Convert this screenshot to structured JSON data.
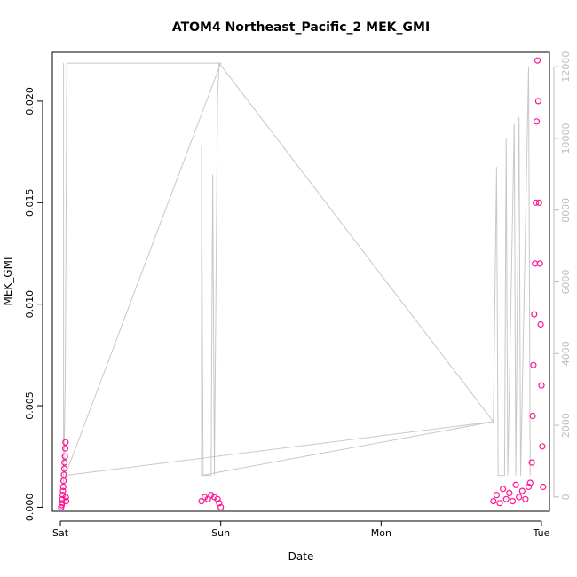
{
  "chart_data": {
    "type": "scatter",
    "title": "ATOM4 Northeast_Pacific_2 MEK_GMI",
    "xlabel": "Date",
    "ylabel": "MEK_GMI",
    "x_ticks": [
      "Sat",
      "Sun",
      "Mon",
      "Tue"
    ],
    "xlim": [
      -0.05,
      3.05
    ],
    "ylim": [
      -0.0002,
      0.0224
    ],
    "y_ticks": [
      "0.000",
      "0.005",
      "0.010",
      "0.015",
      "0.020"
    ],
    "y_tick_values": [
      0,
      0.005,
      0.01,
      0.015,
      0.02
    ],
    "y2lim": [
      -400,
      12400
    ],
    "y2_ticks": [
      "0",
      "2000",
      "4000",
      "6000",
      "8000",
      "10000",
      "12000"
    ],
    "y2_tick_values": [
      0,
      2000,
      4000,
      6000,
      8000,
      10000,
      12000
    ],
    "grid": false,
    "colors": {
      "points": "#ff1493",
      "altitude": "#c8c8c8",
      "axes": "#000000",
      "right_axis": "#bdbdbd"
    },
    "series": [
      {
        "kind": "points",
        "axis": "left",
        "values": [
          [
            0.005,
            0.0
          ],
          [
            0.008,
            0.0001
          ],
          [
            0.01,
            0.0002
          ],
          [
            0.012,
            0.0004
          ],
          [
            0.014,
            0.0006
          ],
          [
            0.016,
            0.0008
          ],
          [
            0.018,
            0.001
          ],
          [
            0.02,
            0.0013
          ],
          [
            0.022,
            0.0016
          ],
          [
            0.024,
            0.0019
          ],
          [
            0.026,
            0.0022
          ],
          [
            0.028,
            0.0025
          ],
          [
            0.03,
            0.0029
          ],
          [
            0.032,
            0.0032
          ],
          [
            0.034,
            0.0005
          ],
          [
            0.036,
            0.0003
          ],
          [
            0.88,
            0.0003
          ],
          [
            0.9,
            0.0005
          ],
          [
            0.92,
            0.0004
          ],
          [
            0.94,
            0.0006
          ],
          [
            0.96,
            0.0005
          ],
          [
            0.98,
            0.0004
          ],
          [
            0.99,
            0.0002
          ],
          [
            1.0,
            0.0
          ],
          [
            2.7,
            0.0003
          ],
          [
            2.72,
            0.0006
          ],
          [
            2.74,
            0.0002
          ],
          [
            2.76,
            0.0009
          ],
          [
            2.78,
            0.0004
          ],
          [
            2.8,
            0.0007
          ],
          [
            2.82,
            0.0003
          ],
          [
            2.84,
            0.0011
          ],
          [
            2.86,
            0.0005
          ],
          [
            2.88,
            0.0008
          ],
          [
            2.9,
            0.0004
          ],
          [
            2.92,
            0.001
          ],
          [
            2.93,
            0.0012
          ],
          [
            2.94,
            0.0022
          ],
          [
            2.945,
            0.0045
          ],
          [
            2.95,
            0.007
          ],
          [
            2.955,
            0.0095
          ],
          [
            2.96,
            0.012
          ],
          [
            2.965,
            0.015
          ],
          [
            2.97,
            0.019
          ],
          [
            2.975,
            0.022
          ],
          [
            2.98,
            0.02
          ],
          [
            2.985,
            0.015
          ],
          [
            2.99,
            0.012
          ],
          [
            2.995,
            0.009
          ],
          [
            3.0,
            0.006
          ],
          [
            3.005,
            0.003
          ],
          [
            3.01,
            0.001
          ]
        ]
      },
      {
        "kind": "line",
        "axis": "right",
        "values": [
          [
            0.02,
            12100
          ],
          [
            0.02,
            400
          ],
          [
            0.03,
            3200
          ],
          [
            0.04,
            12100
          ],
          [
            1.0,
            12100
          ],
          [
            0.03,
            600
          ],
          [
            2.7,
            2100
          ],
          [
            0.88,
            600
          ],
          [
            0.88,
            9800
          ],
          [
            0.89,
            600
          ],
          [
            0.94,
            600
          ],
          [
            0.95,
            9000
          ],
          [
            0.96,
            600
          ],
          [
            0.98,
            11200
          ],
          [
            0.99,
            12100
          ],
          [
            2.7,
            2100
          ],
          [
            2.72,
            9200
          ],
          [
            2.73,
            600
          ],
          [
            2.77,
            600
          ],
          [
            2.78,
            10000
          ],
          [
            2.79,
            600
          ],
          [
            2.83,
            10400
          ],
          [
            2.84,
            600
          ],
          [
            2.86,
            10600
          ],
          [
            2.87,
            600
          ],
          [
            2.92,
            12000
          ],
          [
            2.93,
            600
          ]
        ]
      }
    ]
  }
}
